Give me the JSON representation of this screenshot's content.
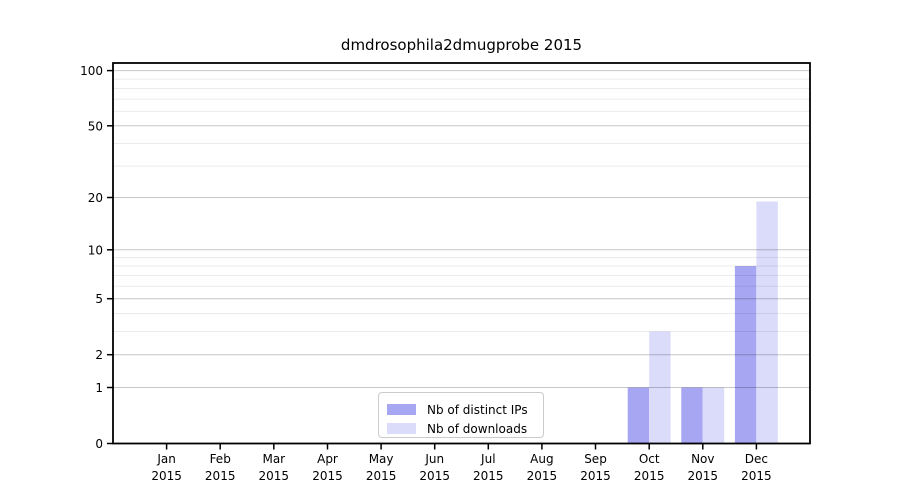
{
  "title": "dmdrosophila2dmugprobe 2015",
  "chart_data": {
    "type": "bar",
    "title": "dmdrosophila2dmugprobe 2015",
    "months": [
      "Jan",
      "Feb",
      "Mar",
      "Apr",
      "May",
      "Jun",
      "Jul",
      "Aug",
      "Sep",
      "Oct",
      "Nov",
      "Dec"
    ],
    "year": "2015",
    "series": [
      {
        "name": "Nb of distinct IPs",
        "color": "#a6a6f2",
        "values": [
          0,
          0,
          0,
          0,
          0,
          0,
          0,
          0,
          0,
          1,
          1,
          8
        ]
      },
      {
        "name": "Nb of downloads",
        "color": "#dbdbfa",
        "values": [
          0,
          0,
          0,
          0,
          0,
          0,
          0,
          0,
          0,
          3,
          1,
          19
        ]
      }
    ],
    "y_scale": "log1p",
    "ylim": [
      0,
      110
    ],
    "y_major_ticks": [
      0,
      1,
      2,
      5,
      10,
      20,
      50,
      100
    ],
    "y_minor_ticks": [
      3,
      4,
      6,
      7,
      8,
      9,
      30,
      40,
      60,
      70,
      80,
      90
    ],
    "grid": true,
    "legend": {
      "position": "lower center",
      "labels": [
        "Nb of distinct IPs",
        "Nb of downloads"
      ]
    }
  }
}
